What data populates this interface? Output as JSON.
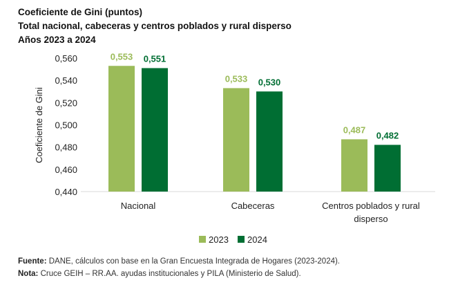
{
  "titles": [
    "Coeficiente de Gini (puntos)",
    "Total nacional, cabeceras y centros poblados y rural disperso",
    "Años 2023 a 2024"
  ],
  "footer": {
    "source_label": "Fuente:",
    "source_text": " DANE, cálculos con base en la Gran Encuesta Integrada de Hogares (2023-2024).",
    "note_label": "Nota:",
    "note_text": " Cruce GEIH – RR.AA. ayudas institucionales y PILA (Ministerio de Salud)."
  },
  "chart_data": {
    "type": "bar",
    "ylabel": "Coeficiente de Gini",
    "ylim": [
      0.44,
      0.56
    ],
    "yticks": [
      "0,440",
      "0,460",
      "0,480",
      "0,500",
      "0,520",
      "0,540",
      "0,560"
    ],
    "categories": [
      [
        "Nacional"
      ],
      [
        "Cabeceras"
      ],
      [
        "Centros poblados y rural",
        "disperso"
      ]
    ],
    "series": [
      {
        "name": "2023",
        "values": [
          0.553,
          0.533,
          0.487
        ],
        "labels": [
          "0,553",
          "0,533",
          "0,487"
        ],
        "color": "#9BBB59"
      },
      {
        "name": "2024",
        "values": [
          0.551,
          0.53,
          0.482
        ],
        "labels": [
          "0,551",
          "0,530",
          "0,482"
        ],
        "color": "#006E33"
      }
    ],
    "legend": "bottom",
    "grid": false
  }
}
